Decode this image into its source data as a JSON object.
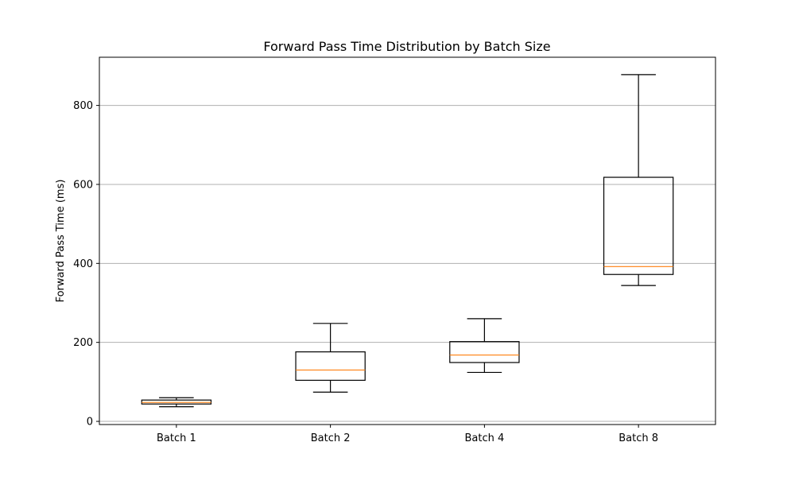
{
  "chart_data": {
    "type": "box",
    "title": "Forward Pass Time Distribution by Batch Size",
    "xlabel": "",
    "ylabel": "Forward Pass Time (ms)",
    "categories": [
      "Batch 1",
      "Batch 2",
      "Batch 4",
      "Batch 8"
    ],
    "boxes": [
      {
        "whisker_low": 37,
        "q1": 44,
        "median": 48,
        "q3": 54,
        "whisker_high": 60
      },
      {
        "whisker_low": 74,
        "q1": 104,
        "median": 130,
        "q3": 176,
        "whisker_high": 248
      },
      {
        "whisker_low": 124,
        "q1": 149,
        "median": 168,
        "q3": 202,
        "whisker_high": 260
      },
      {
        "whisker_low": 344,
        "q1": 372,
        "median": 392,
        "q3": 618,
        "whisker_high": 878
      }
    ],
    "ylim": [
      -8,
      922
    ],
    "yticks": [
      0,
      200,
      400,
      600,
      800
    ],
    "grid": "y-major",
    "colors": {
      "box": "#000000",
      "median": "#ff7f0e",
      "grid": "#b0b0b0"
    }
  }
}
